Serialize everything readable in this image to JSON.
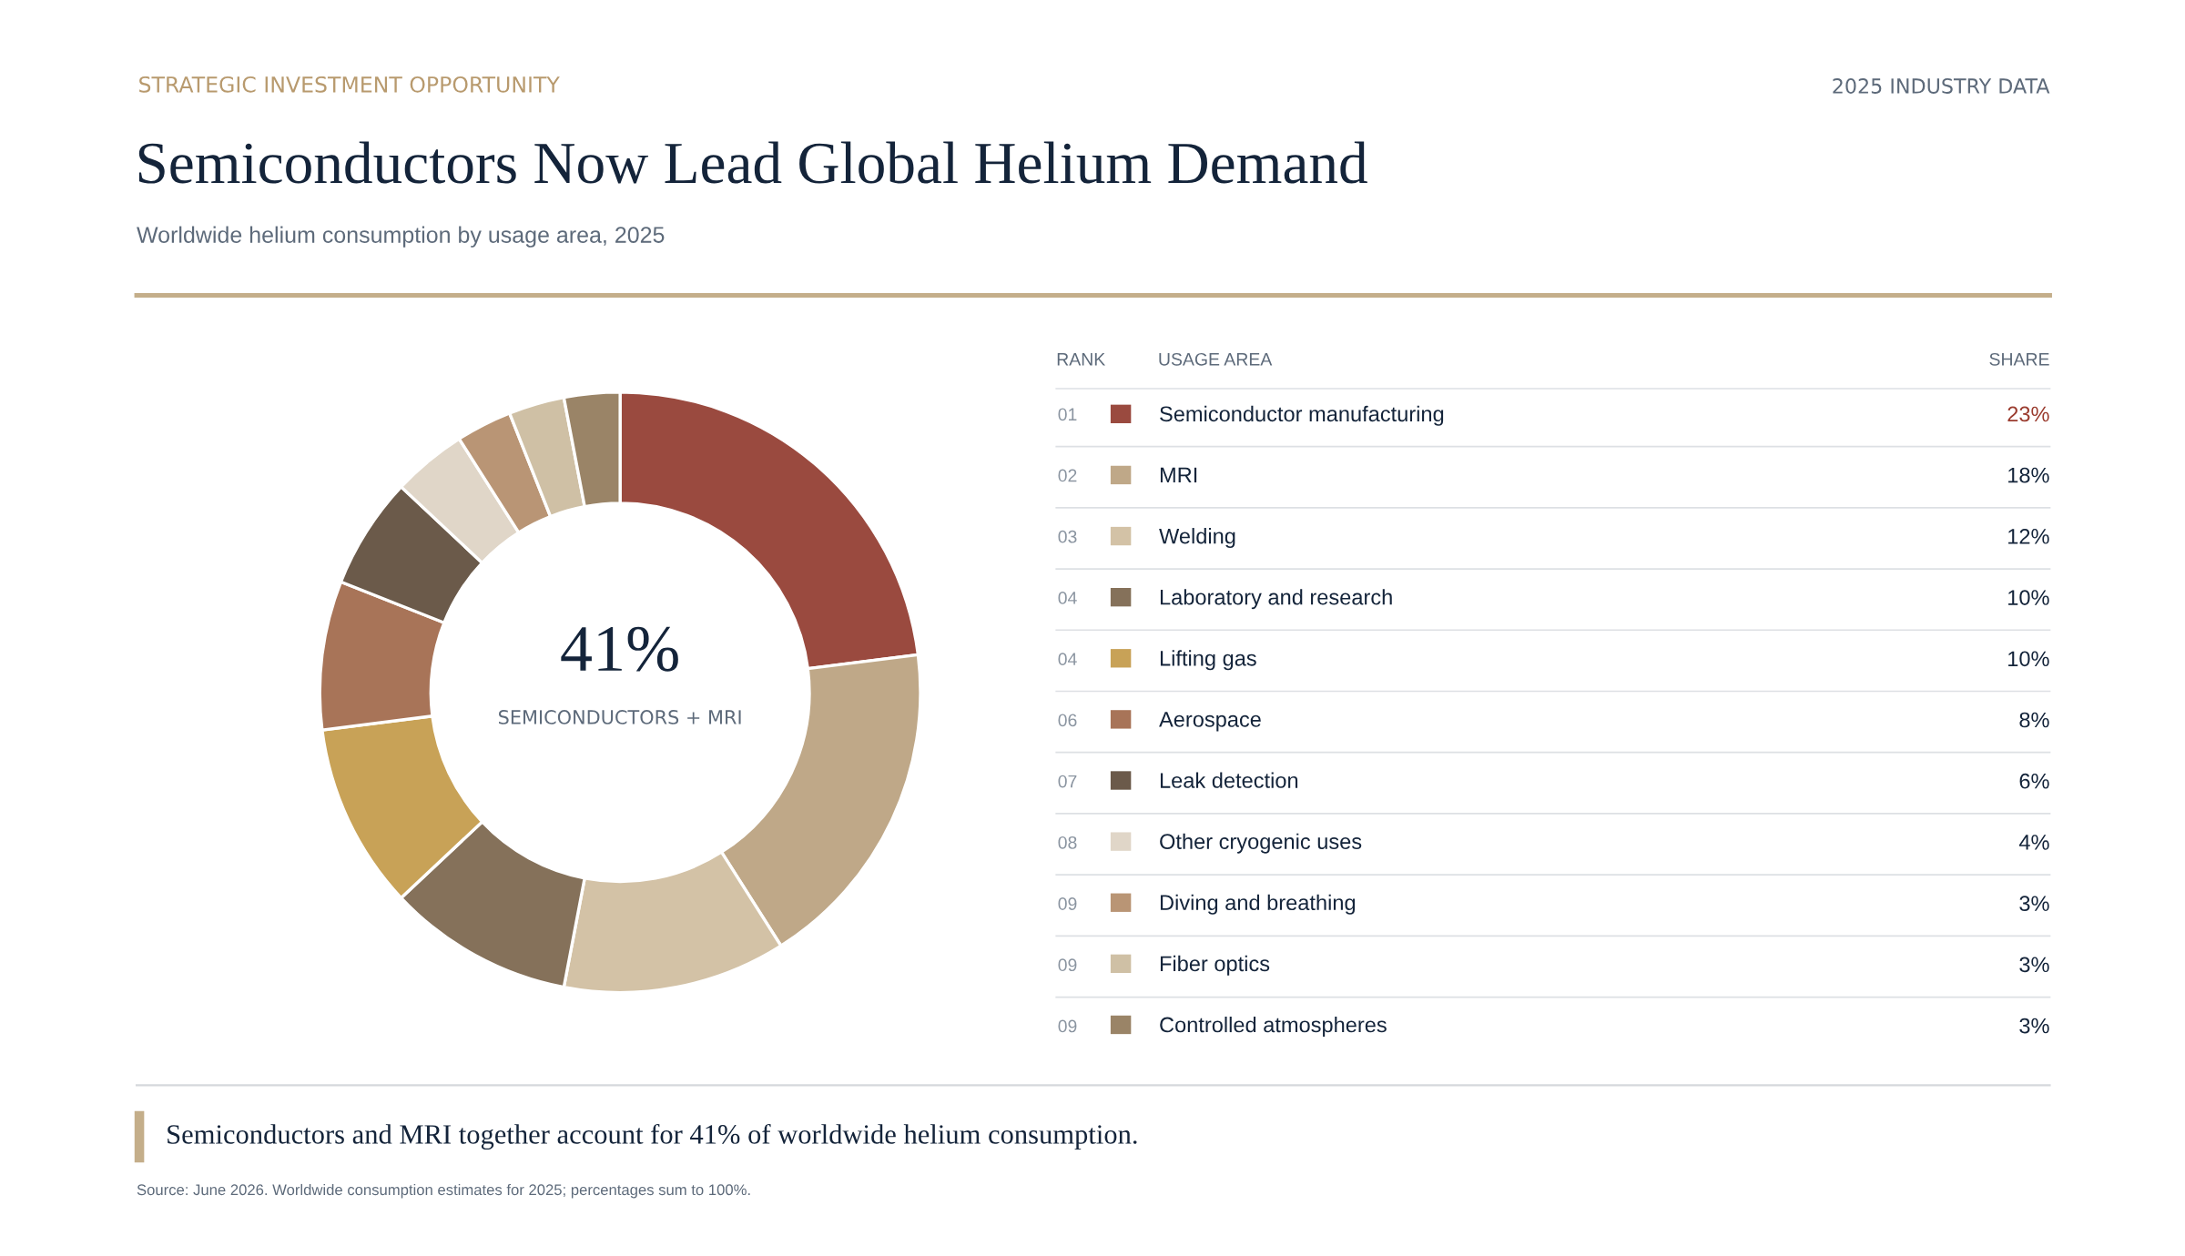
{
  "chart_data": {
    "type": "donut",
    "title": "Semiconductors Now Lead Global Helium Demand",
    "subtitle": "Worldwide helium consumption by usage area, 2025",
    "categories": [
      "Semiconductor manufacturing",
      "MRI",
      "Welding",
      "Laboratory and research",
      "Lifting gas",
      "Aerospace",
      "Leak detection",
      "Other cryogenic uses",
      "Diving and breathing",
      "Fiber optics",
      "Controlled atmospheres"
    ],
    "values": [
      23,
      18,
      12,
      10,
      10,
      8,
      6,
      4,
      3,
      3,
      3
    ],
    "colors": [
      "#9a4a3f",
      "#bfa888",
      "#d3c2a6",
      "#85715a",
      "#c8a257",
      "#a87458",
      "#6b5a4a",
      "#e0d6c8",
      "#b99575",
      "#cfc0a5",
      "#9a8467"
    ],
    "value_labels": [
      "23%",
      "18%",
      "12%",
      "10%",
      "10%",
      "8%",
      "6%",
      "4%",
      "3%",
      "3%",
      "3%"
    ],
    "legend": "right",
    "annotations": [
      "STRATEGIC INVESTMENT OPPORTUNITY",
      "2025 INDUSTRY DATA",
      "41%",
      "SEMICONDUCTORS + MRI",
      "RANK",
      "USAGE AREA",
      "SHARE",
      "01",
      "02",
      "03",
      "04",
      "04",
      "06",
      "07",
      "08",
      "09",
      "09",
      "09",
      "Semiconductors and MRI together account for 41% of worldwide helium consumption.",
      "Source: June 2026. Worldwide consumption estimates for 2025; percentages sum to 100%."
    ]
  }
}
